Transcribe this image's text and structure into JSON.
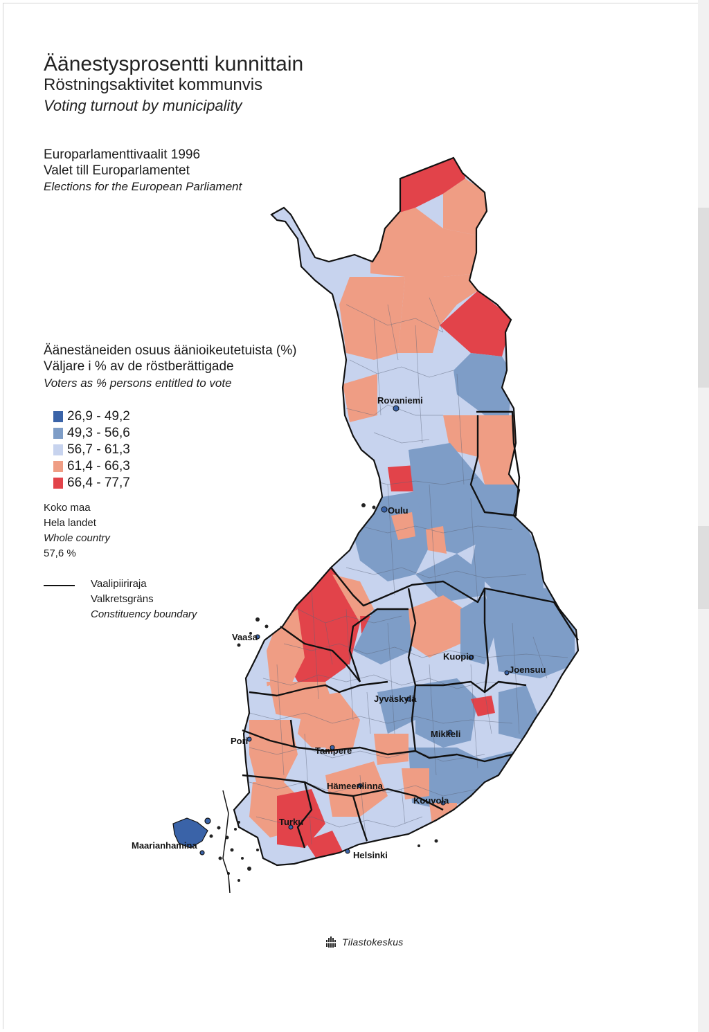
{
  "title": {
    "fi": "Äänestysprosentti kunnittain",
    "sv": "Röstningsaktivitet kommunvis",
    "en": "Voting turnout by municipality"
  },
  "subtitle": {
    "fi": "Europarlamenttivaalit 1996",
    "sv": "Valet till Europarlamentet",
    "en": "Elections for the European Parliament"
  },
  "legend": {
    "heading_fi": "Äänestäneiden osuus äänioikeutetuista (%)",
    "heading_sv": "Väljare i % av de röstberättigade",
    "heading_en": "Voters as % persons entitled to vote",
    "classes": [
      {
        "label": "26,9 - 49,2",
        "color": "#3a63a8"
      },
      {
        "label": "49,3 - 56,6",
        "color": "#7e9dc7"
      },
      {
        "label": "56,7 - 61,3",
        "color": "#c7d3ee"
      },
      {
        "label": "61,4 - 66,3",
        "color": "#ef9d84"
      },
      {
        "label": "66,4 - 77,7",
        "color": "#e2434a"
      }
    ]
  },
  "whole_country": {
    "fi": "Koko maa",
    "sv": "Hela landet",
    "en": "Whole country",
    "value": "57,6 %"
  },
  "boundary_legend": {
    "fi": "Vaalipiiriraja",
    "sv": "Valkretsgräns",
    "en": "Constituency boundary"
  },
  "cities": {
    "rovaniemi": "Rovaniemi",
    "oulu": "Oulu",
    "vaasa": "Vaasa",
    "kuopio": "Kuopio",
    "joensuu": "Joensuu",
    "jyvaskyla": "Jyväskylä",
    "mikkeli": "Mikkeli",
    "pori": "Pori",
    "tampere": "Tampere",
    "hameenlinna": "Hämeenlinna",
    "kouvola": "Kouvola",
    "turku": "Turku",
    "maarianhamina": "Maarianhamina",
    "helsinki": "Helsinki"
  },
  "publisher": "Tilastokeskus"
}
